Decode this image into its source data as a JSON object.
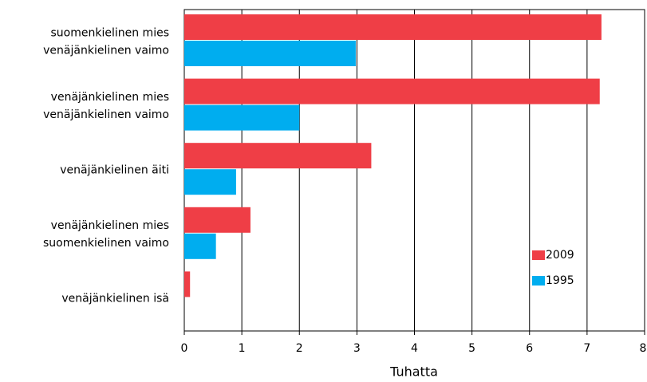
{
  "chart_data": {
    "type": "bar",
    "orientation": "horizontal",
    "categories": [
      [
        "suomenkielinen mies",
        "venäjänkielinen vaimo"
      ],
      [
        "venäjänkielinen mies",
        "venäjänkielinen vaimo"
      ],
      [
        "venäjänkielinen äiti"
      ],
      [
        "venäjänkielinen mies",
        "suomenkielinen vaimo"
      ],
      [
        "venäjänkielinen isä"
      ]
    ],
    "series": [
      {
        "name": "2009",
        "color": "#ef3e46",
        "values": [
          7.25,
          7.22,
          3.25,
          1.15,
          0.1
        ]
      },
      {
        "name": "1995",
        "color": "#00adef",
        "values": [
          2.98,
          2.0,
          0.9,
          0.55,
          null
        ]
      }
    ],
    "xlabel": "Tuhatta",
    "xlim": [
      0,
      8
    ],
    "xticks": [
      0,
      1,
      2,
      3,
      4,
      5,
      6,
      7,
      8
    ],
    "grid": true,
    "legend": "lower right"
  }
}
